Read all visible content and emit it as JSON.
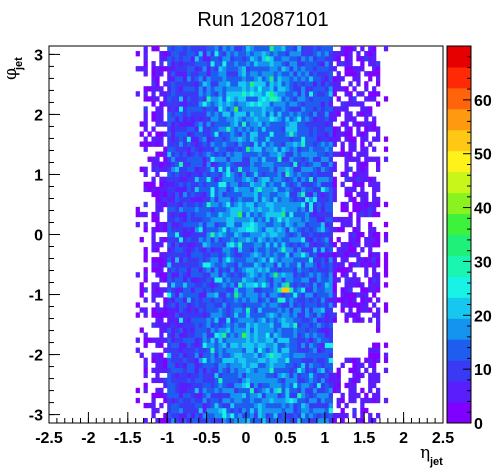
{
  "chart_data": {
    "type": "heatmap",
    "title": "Run 12087101",
    "xlabel": {
      "symbol": "η",
      "subscript": "jet"
    },
    "ylabel": {
      "symbol": "φ",
      "subscript": "jet"
    },
    "xlim": [
      -2.5,
      2.5
    ],
    "ylim": [
      -3.14,
      3.14
    ],
    "x_ticks": [
      "-2.5",
      "-2",
      "-1.5",
      "-1",
      "-0.5",
      "0",
      "0.5",
      "1",
      "1.5",
      "2",
      "2.5"
    ],
    "y_ticks": [
      "-3",
      "-2",
      "-1",
      "0",
      "1",
      "2",
      "3"
    ],
    "colorbar": {
      "range": [
        0,
        70
      ],
      "ticks": [
        "0",
        "10",
        "20",
        "30",
        "40",
        "50",
        "60"
      ],
      "palette": [
        "#7f00ff",
        "#5a1dfb",
        "#3a3af5",
        "#1e5df0",
        "#1494ef",
        "#16c8f0",
        "#19f2e6",
        "#1af5b0",
        "#1ef07a",
        "#3cf23c",
        "#8af21e",
        "#c8f51a",
        "#fff21a",
        "#ffc814",
        "#ff9a10",
        "#ff640a",
        "#ff2a05",
        "#e60000"
      ]
    },
    "hot_spots": [
      {
        "x": 0.5,
        "y": -0.9,
        "value": 66
      },
      {
        "x": 0.6,
        "y": 1.8,
        "value": 35
      },
      {
        "x": -0.5,
        "y": -0.5,
        "value": 28
      },
      {
        "x": 0.5,
        "y": -1.5,
        "value": 25
      }
    ],
    "notes": "Dense band of jets between eta -1.2 and 1.6 across all phi; empty region near eta 1.3, phi -1.8"
  }
}
